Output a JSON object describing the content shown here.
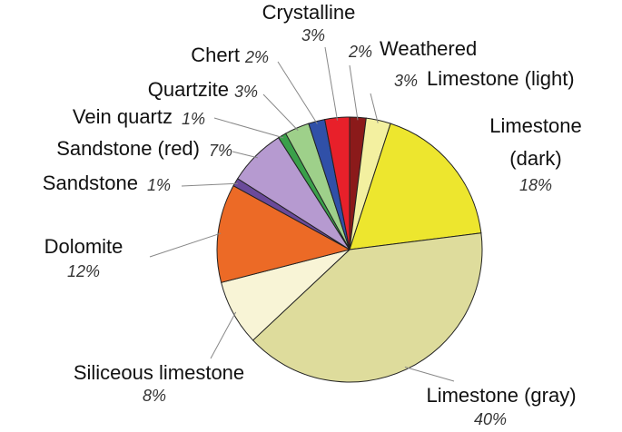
{
  "chart_data": {
    "type": "pie",
    "categories": [
      "Weathered",
      "Limestone (light)",
      "Limestone (dark)",
      "Limestone (gray)",
      "Siliceous limestone",
      "Dolomite",
      "Sandstone",
      "Sandstone (red)",
      "Vein quartz",
      "Quartzite",
      "Chert",
      "Crystalline"
    ],
    "values": [
      2,
      3,
      18,
      40,
      8,
      12,
      1,
      7,
      1,
      3,
      2,
      3
    ],
    "value_labels": [
      "2%",
      "3%",
      "18%",
      "40%",
      "8%",
      "12%",
      "1%",
      "7%",
      "1%",
      "3%",
      "2%",
      "3%"
    ],
    "colors": [
      "#8b1a1a",
      "#f3f0a0",
      "#ede62e",
      "#dedc9c",
      "#f8f4d6",
      "#ec6a26",
      "#6a4a9a",
      "#b69ad0",
      "#3aa04a",
      "#9ed08a",
      "#3050a8",
      "#e8202a"
    ]
  }
}
